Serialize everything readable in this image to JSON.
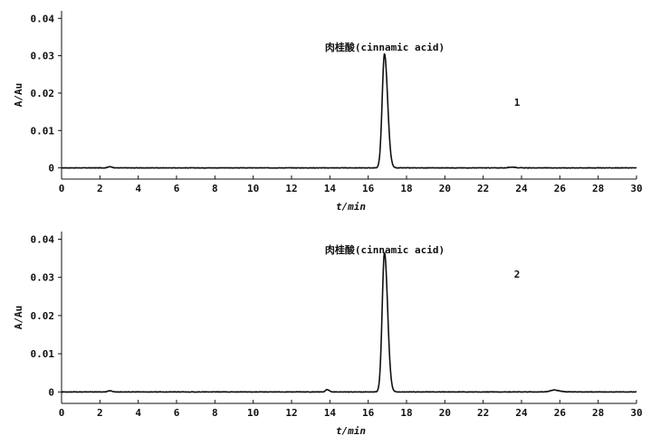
{
  "chart_data": [
    {
      "type": "line",
      "xlabel": "t/min",
      "ylabel": "A/Au",
      "xlim": [
        0,
        30
      ],
      "ylim": [
        -0.003,
        0.042
      ],
      "xticks": [
        "0",
        "2",
        "4",
        "6",
        "8",
        "10",
        "12",
        "14",
        "16",
        "18",
        "20",
        "22",
        "24",
        "26",
        "28",
        "30"
      ],
      "yticks": [
        "0",
        "0.01",
        "0.02",
        "0.03",
        "0.04"
      ],
      "annotation": "肉桂酸(cinnamic acid)",
      "trace_label": "1",
      "series": [
        {
          "peaks": [
            {
              "rt": 16.85,
              "height": 0.0305,
              "width": 0.12
            },
            {
              "rt": 2.5,
              "height": 0.0003,
              "width": 0.1
            },
            {
              "rt": 23.5,
              "height": 0.0002,
              "width": 0.15
            }
          ]
        }
      ]
    },
    {
      "type": "line",
      "xlabel": "t/min",
      "ylabel": "A/Au",
      "xlim": [
        0,
        30
      ],
      "ylim": [
        -0.003,
        0.042
      ],
      "xticks": [
        "0",
        "2",
        "4",
        "6",
        "8",
        "10",
        "12",
        "14",
        "16",
        "18",
        "20",
        "22",
        "24",
        "26",
        "28",
        "30"
      ],
      "yticks": [
        "0",
        "0.01",
        "0.02",
        "0.03",
        "0.04"
      ],
      "annotation": "肉桂酸(cinnamic acid)",
      "trace_label": "2",
      "series": [
        {
          "peaks": [
            {
              "rt": 16.85,
              "height": 0.0365,
              "width": 0.12
            },
            {
              "rt": 13.85,
              "height": 0.0006,
              "width": 0.08
            },
            {
              "rt": 25.7,
              "height": 0.0005,
              "width": 0.2
            },
            {
              "rt": 2.5,
              "height": 0.0003,
              "width": 0.1
            }
          ]
        }
      ]
    }
  ]
}
